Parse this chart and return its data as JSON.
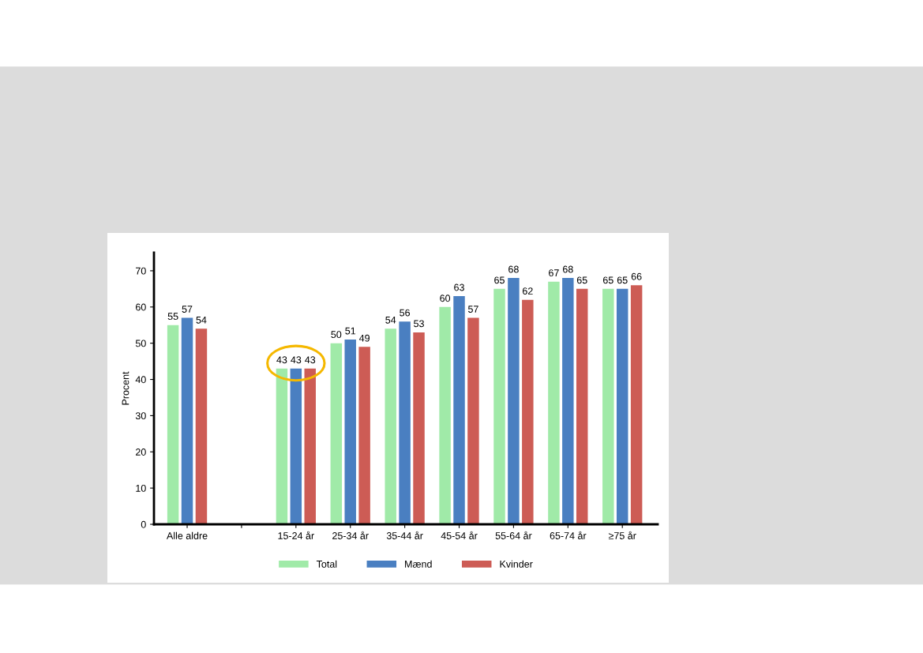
{
  "chart_data": {
    "type": "bar",
    "ylabel": "Procent",
    "categories": [
      "Alle aldre",
      null,
      "15-24 år",
      "25-34 år",
      "35-44 år",
      "45-54 år",
      "55-64 år",
      "65-74 år",
      "≥75 år"
    ],
    "series": [
      {
        "name": "Total",
        "color": "#a0eaa8",
        "values": [
          55,
          null,
          43,
          50,
          54,
          60,
          65,
          67,
          65
        ]
      },
      {
        "name": "Mænd",
        "color": "#4a7fc1",
        "values": [
          57,
          null,
          43,
          51,
          56,
          63,
          68,
          68,
          65
        ]
      },
      {
        "name": "Kvinder",
        "color": "#cd5c55",
        "values": [
          54,
          null,
          43,
          49,
          53,
          57,
          62,
          65,
          66
        ]
      }
    ],
    "ylim": [
      0,
      75
    ],
    "yticks": [
      0,
      10,
      20,
      30,
      40,
      50,
      60,
      70
    ],
    "data_labels": true,
    "grid": false,
    "legend": "bottom"
  }
}
